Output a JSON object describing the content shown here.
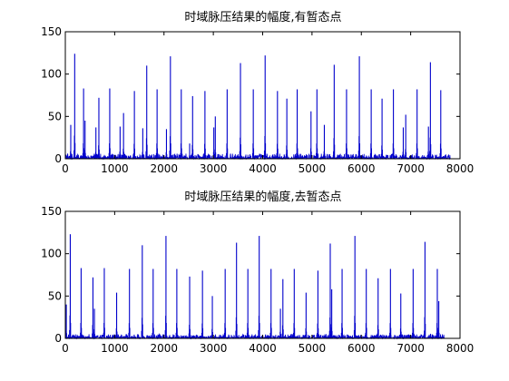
{
  "chart_data": [
    {
      "type": "line",
      "title": "时域脉压结果的幅度,有暂态点",
      "xlabel": "",
      "ylabel": "",
      "xlim": [
        0,
        8000
      ],
      "ylim": [
        0,
        150
      ],
      "xticks": [
        0,
        1000,
        2000,
        3000,
        4000,
        5000,
        6000,
        7000,
        8000
      ],
      "yticks": [
        0,
        50,
        100,
        150
      ],
      "grid": false,
      "color": "#0000cc",
      "x_end": 7800,
      "noise_level": 6,
      "peaks": [
        {
          "x": 110,
          "y": 40
        },
        {
          "x": 190,
          "y": 124
        },
        {
          "x": 370,
          "y": 83
        },
        {
          "x": 400,
          "y": 45
        },
        {
          "x": 620,
          "y": 37
        },
        {
          "x": 680,
          "y": 72
        },
        {
          "x": 900,
          "y": 83
        },
        {
          "x": 1110,
          "y": 38
        },
        {
          "x": 1180,
          "y": 54
        },
        {
          "x": 1400,
          "y": 80
        },
        {
          "x": 1570,
          "y": 36
        },
        {
          "x": 1650,
          "y": 110
        },
        {
          "x": 1860,
          "y": 82
        },
        {
          "x": 2050,
          "y": 35
        },
        {
          "x": 2130,
          "y": 121
        },
        {
          "x": 2350,
          "y": 82
        },
        {
          "x": 2520,
          "y": 18
        },
        {
          "x": 2580,
          "y": 74
        },
        {
          "x": 2830,
          "y": 80
        },
        {
          "x": 3010,
          "y": 37
        },
        {
          "x": 3040,
          "y": 50
        },
        {
          "x": 3280,
          "y": 82
        },
        {
          "x": 3550,
          "y": 113
        },
        {
          "x": 3810,
          "y": 82
        },
        {
          "x": 4050,
          "y": 122
        },
        {
          "x": 4300,
          "y": 80
        },
        {
          "x": 4490,
          "y": 71
        },
        {
          "x": 4700,
          "y": 82
        },
        {
          "x": 4980,
          "y": 56
        },
        {
          "x": 5100,
          "y": 82
        },
        {
          "x": 5250,
          "y": 40
        },
        {
          "x": 5450,
          "y": 111
        },
        {
          "x": 5700,
          "y": 82
        },
        {
          "x": 5960,
          "y": 121
        },
        {
          "x": 6200,
          "y": 82
        },
        {
          "x": 6420,
          "y": 71
        },
        {
          "x": 6650,
          "y": 82
        },
        {
          "x": 6850,
          "y": 37
        },
        {
          "x": 6900,
          "y": 52
        },
        {
          "x": 7130,
          "y": 82
        },
        {
          "x": 7360,
          "y": 38
        },
        {
          "x": 7400,
          "y": 114
        },
        {
          "x": 7610,
          "y": 81
        }
      ]
    },
    {
      "type": "line",
      "title": "时域脉压结果的幅度,去暂态点",
      "xlabel": "",
      "ylabel": "",
      "xlim": [
        0,
        8000
      ],
      "ylim": [
        0,
        150
      ],
      "xticks": [
        0,
        1000,
        2000,
        3000,
        4000,
        5000,
        6000,
        7000,
        8000
      ],
      "yticks": [
        0,
        50,
        100,
        150
      ],
      "grid": false,
      "color": "#0000cc",
      "x_end": 7700,
      "noise_level": 5,
      "peaks": [
        {
          "x": 20,
          "y": 40
        },
        {
          "x": 100,
          "y": 123
        },
        {
          "x": 320,
          "y": 83
        },
        {
          "x": 560,
          "y": 72
        },
        {
          "x": 590,
          "y": 35
        },
        {
          "x": 790,
          "y": 83
        },
        {
          "x": 1040,
          "y": 54
        },
        {
          "x": 1300,
          "y": 82
        },
        {
          "x": 1560,
          "y": 110
        },
        {
          "x": 1780,
          "y": 82
        },
        {
          "x": 2040,
          "y": 121
        },
        {
          "x": 2260,
          "y": 82
        },
        {
          "x": 2520,
          "y": 73
        },
        {
          "x": 2780,
          "y": 80
        },
        {
          "x": 2980,
          "y": 50
        },
        {
          "x": 3240,
          "y": 82
        },
        {
          "x": 3470,
          "y": 113
        },
        {
          "x": 3700,
          "y": 82
        },
        {
          "x": 3930,
          "y": 121
        },
        {
          "x": 4170,
          "y": 82
        },
        {
          "x": 4360,
          "y": 35
        },
        {
          "x": 4410,
          "y": 70
        },
        {
          "x": 4640,
          "y": 82
        },
        {
          "x": 4880,
          "y": 54
        },
        {
          "x": 5120,
          "y": 80
        },
        {
          "x": 5370,
          "y": 112
        },
        {
          "x": 5400,
          "y": 58
        },
        {
          "x": 5610,
          "y": 82
        },
        {
          "x": 5870,
          "y": 121
        },
        {
          "x": 6100,
          "y": 82
        },
        {
          "x": 6340,
          "y": 71
        },
        {
          "x": 6590,
          "y": 82
        },
        {
          "x": 6800,
          "y": 53
        },
        {
          "x": 7050,
          "y": 82
        },
        {
          "x": 7290,
          "y": 114
        },
        {
          "x": 7540,
          "y": 82
        },
        {
          "x": 7570,
          "y": 44
        }
      ]
    }
  ]
}
